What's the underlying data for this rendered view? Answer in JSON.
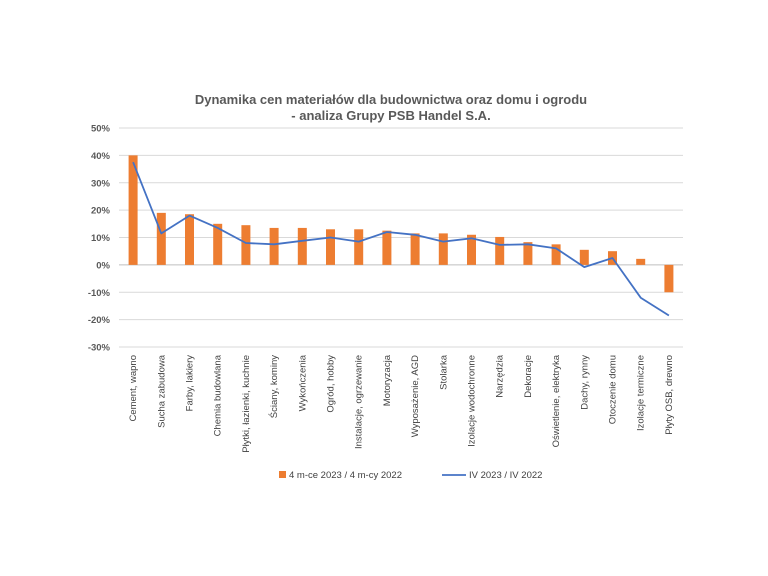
{
  "chart_data": {
    "type": "bar",
    "title": [
      "Dynamika cen materiałów dla budownictwa oraz domu i ogrodu",
      "- analiza Grupy PSB Handel S.A."
    ],
    "categories": [
      "Cement, wapno",
      "Sucha zabudowa",
      "Farby, lakiery",
      "Chemia budowlana",
      "Płytki, łazienki, kuchnie",
      "Ściany, kominy",
      "Wykończenia",
      "Ogród, hobby",
      "Instalacje, ogrzewanie",
      "Motoryzacja",
      "Wyposażenie, AGD",
      "Stolarka",
      "Izolacje wodochronne",
      "Narzędzia",
      "Dekoracje",
      "Oświetlenie, elektryka",
      "Dachy, rynny",
      "Otoczenie domu",
      "Izolacje termiczne",
      "Płyty OSB, drewno"
    ],
    "series": [
      {
        "name": "4 m-ce 2023 / 4 m-cy 2022",
        "type": "bar",
        "color": "#ED7D31",
        "values": [
          40,
          19,
          18.5,
          15,
          14.5,
          13.5,
          13.5,
          13,
          13,
          12.5,
          11.5,
          11.5,
          11,
          10.2,
          8.3,
          7.5,
          5.5,
          5,
          2.2,
          -10
        ]
      },
      {
        "name": "IV 2023 / IV 2022",
        "type": "line",
        "color": "#4472C4",
        "values": [
          37.5,
          11.5,
          18,
          13.5,
          8,
          7.5,
          8.8,
          10,
          8.5,
          12,
          11,
          8.5,
          9.7,
          7.3,
          7.5,
          6,
          -0.8,
          2.5,
          -12,
          -18.5
        ]
      }
    ],
    "ylim": [
      -30,
      50
    ],
    "yticks": [
      -30,
      -20,
      -10,
      0,
      10,
      20,
      30,
      40,
      50
    ],
    "ytick_labels": [
      "-30%",
      "-20%",
      "-10%",
      "0%",
      "10%",
      "20%",
      "30%",
      "40%",
      "50%"
    ],
    "grid": true,
    "legend_position": "bottom"
  }
}
